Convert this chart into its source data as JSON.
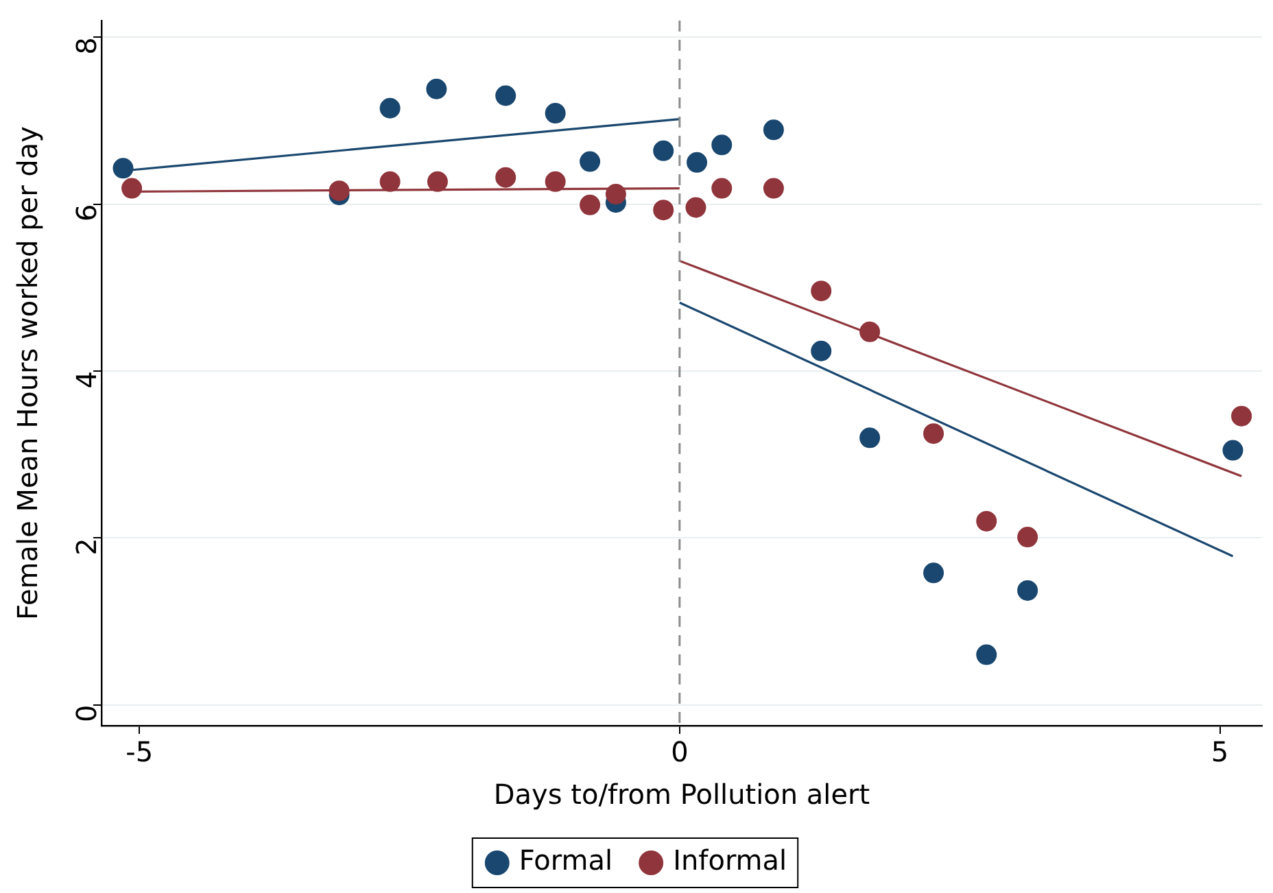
{
  "chart_data": {
    "type": "scatter",
    "xlabel": "Days to/from Pollution alert",
    "ylabel": "Female Mean Hours worked per day",
    "xlim": [
      -5.35,
      5.39
    ],
    "xticks": [
      -5,
      0,
      5
    ],
    "ylim": [
      -0.25,
      8.2
    ],
    "yticks": [
      0,
      2,
      4,
      6,
      8
    ],
    "grid": "y",
    "legend": "bottom",
    "marker": "circle",
    "ref_lines": [
      {
        "axis": "x",
        "value": 0,
        "color": "#8c8c8c",
        "line_style": "dashed"
      }
    ],
    "series": [
      {
        "name": "Formal",
        "color": "#1a476f",
        "x": [
          -5.15,
          -3.15,
          -2.68,
          -2.25,
          -1.61,
          -1.15,
          -0.83,
          -0.59,
          -0.15,
          0.16,
          0.39,
          0.87,
          1.31,
          1.76,
          2.35,
          2.84,
          3.22,
          5.12
        ],
        "values": [
          6.43,
          6.11,
          7.15,
          7.38,
          7.3,
          7.09,
          6.51,
          6.02,
          6.64,
          6.5,
          6.71,
          6.89,
          4.24,
          3.2,
          1.58,
          0.6,
          1.37,
          3.05
        ]
      },
      {
        "name": "Informal",
        "color": "#90353b",
        "x": [
          -5.07,
          -3.15,
          -2.68,
          -2.24,
          -1.61,
          -1.15,
          -0.83,
          -0.59,
          -0.15,
          0.15,
          0.39,
          0.87,
          1.31,
          1.76,
          2.35,
          2.84,
          3.22,
          5.2
        ],
        "values": [
          6.19,
          6.16,
          6.27,
          6.27,
          6.32,
          6.27,
          5.99,
          6.12,
          5.93,
          5.96,
          6.19,
          6.19,
          4.96,
          4.47,
          3.25,
          2.2,
          2.01,
          3.46
        ]
      },
      {
        "color": "#1a476f",
        "type": "line",
        "marker": "none",
        "x": [
          -5.15,
          0
        ],
        "values": [
          6.4,
          7.02
        ]
      },
      {
        "color": "#1a476f",
        "type": "line",
        "marker": "none",
        "x": [
          0,
          5.12
        ],
        "values": [
          4.82,
          1.78
        ]
      },
      {
        "color": "#90353b",
        "type": "line",
        "marker": "none",
        "x": [
          -5.07,
          0
        ],
        "values": [
          6.15,
          6.19
        ]
      },
      {
        "color": "#90353b",
        "type": "line",
        "marker": "none",
        "x": [
          0,
          5.2
        ],
        "values": [
          5.32,
          2.74
        ]
      }
    ]
  }
}
